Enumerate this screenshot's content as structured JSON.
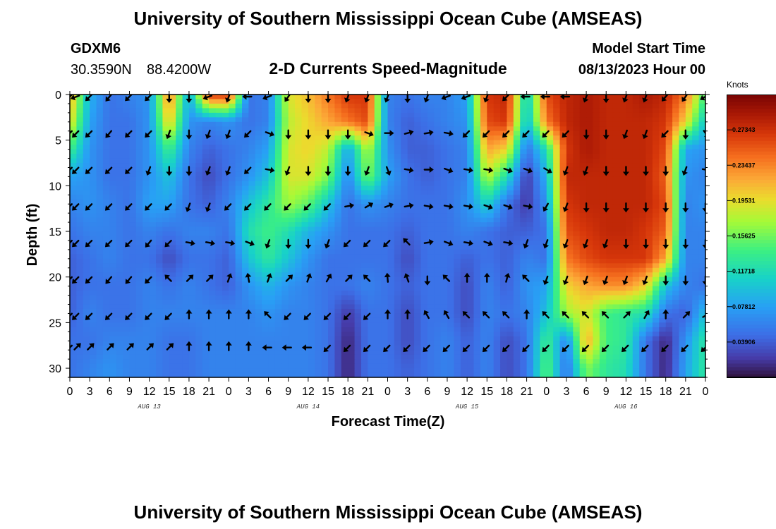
{
  "title": "University of Southern Mississippi Ocean Cube (AMSEAS)",
  "footer_title": "University of Southern Mississippi Ocean Cube (AMSEAS)",
  "station": {
    "name": "GDXM6",
    "lat": "30.3590N",
    "lon": "88.4200W"
  },
  "subtitle": "2-D Currents Speed-Magnitude",
  "model_start": {
    "label": "Model Start Time",
    "value": "08/13/2023 Hour 00"
  },
  "colorbar": {
    "unit": "Knots",
    "tick_labels": [
      "0.03906",
      "0.07812",
      "0.11718",
      "0.15625",
      "0.19531",
      "0.23437",
      "0.27343"
    ],
    "tick_values": [
      0.03906,
      0.07812,
      0.11718,
      0.15625,
      0.19531,
      0.23437,
      0.27343
    ],
    "range": [
      0.0,
      0.3125
    ]
  },
  "chart_data": {
    "type": "heatmap",
    "title": "2-D Currents Speed-Magnitude",
    "xlabel": "Forecast Time(Z)",
    "ylabel": "Depth (ft)",
    "x_tick_labels": [
      "0",
      "3",
      "6",
      "9",
      "12",
      "15",
      "18",
      "21",
      "0",
      "3",
      "6",
      "9",
      "12",
      "15",
      "18",
      "21",
      "0",
      "3",
      "6",
      "9",
      "12",
      "15",
      "18",
      "21",
      "0",
      "3",
      "6",
      "9",
      "12",
      "15",
      "18",
      "21",
      "0"
    ],
    "day_labels": [
      "AUG 13",
      "AUG 14",
      "AUG 15",
      "AUG 16"
    ],
    "y_tick_labels": [
      "0",
      "5",
      "10",
      "15",
      "20",
      "25",
      "30"
    ],
    "ylim": [
      0,
      31
    ],
    "xlim_hours": [
      0,
      96
    ],
    "depths_ft": [
      0,
      3,
      6,
      9,
      12,
      15,
      18,
      21,
      24,
      27,
      30
    ],
    "times_h": [
      0,
      3,
      6,
      9,
      12,
      15,
      18,
      21,
      24,
      27,
      30,
      33,
      36,
      39,
      42,
      45,
      48,
      51,
      54,
      57,
      60,
      63,
      66,
      69,
      72,
      75,
      78,
      81,
      84,
      87,
      90,
      93,
      96
    ],
    "speed_knots": [
      [
        0.22,
        0.09,
        0.05,
        0.06,
        0.07,
        0.24,
        0.08,
        0.27,
        0.27,
        0.05,
        0.06,
        0.19,
        0.21,
        0.24,
        0.27,
        0.27,
        0.06,
        0.05,
        0.06,
        0.06,
        0.08,
        0.27,
        0.28,
        0.1,
        0.26,
        0.28,
        0.29,
        0.28,
        0.28,
        0.29,
        0.28,
        0.24,
        0.14
      ],
      [
        0.2,
        0.08,
        0.05,
        0.05,
        0.07,
        0.21,
        0.07,
        0.06,
        0.07,
        0.05,
        0.06,
        0.18,
        0.2,
        0.22,
        0.24,
        0.26,
        0.06,
        0.04,
        0.05,
        0.06,
        0.07,
        0.26,
        0.27,
        0.09,
        0.24,
        0.28,
        0.29,
        0.28,
        0.28,
        0.28,
        0.27,
        0.2,
        0.1
      ],
      [
        0.14,
        0.07,
        0.05,
        0.05,
        0.07,
        0.14,
        0.06,
        0.04,
        0.05,
        0.06,
        0.08,
        0.19,
        0.2,
        0.18,
        0.08,
        0.18,
        0.07,
        0.04,
        0.04,
        0.05,
        0.06,
        0.22,
        0.2,
        0.05,
        0.12,
        0.27,
        0.29,
        0.28,
        0.28,
        0.28,
        0.26,
        0.08,
        0.07
      ],
      [
        0.08,
        0.07,
        0.05,
        0.05,
        0.07,
        0.1,
        0.05,
        0.03,
        0.05,
        0.07,
        0.1,
        0.19,
        0.19,
        0.16,
        0.06,
        0.16,
        0.08,
        0.05,
        0.04,
        0.05,
        0.06,
        0.18,
        0.12,
        0.02,
        0.09,
        0.28,
        0.28,
        0.28,
        0.28,
        0.28,
        0.25,
        0.07,
        0.06
      ],
      [
        0.06,
        0.07,
        0.06,
        0.05,
        0.08,
        0.08,
        0.05,
        0.04,
        0.06,
        0.1,
        0.13,
        0.17,
        0.15,
        0.1,
        0.05,
        0.07,
        0.06,
        0.05,
        0.05,
        0.05,
        0.07,
        0.11,
        0.05,
        0.02,
        0.07,
        0.27,
        0.28,
        0.28,
        0.28,
        0.28,
        0.26,
        0.06,
        0.07
      ],
      [
        0.05,
        0.06,
        0.06,
        0.05,
        0.06,
        0.05,
        0.06,
        0.06,
        0.05,
        0.12,
        0.14,
        0.12,
        0.09,
        0.07,
        0.05,
        0.05,
        0.05,
        0.04,
        0.05,
        0.05,
        0.06,
        0.05,
        0.04,
        0.04,
        0.05,
        0.26,
        0.27,
        0.28,
        0.28,
        0.27,
        0.25,
        0.06,
        0.06
      ],
      [
        0.04,
        0.05,
        0.06,
        0.05,
        0.05,
        0.03,
        0.05,
        0.05,
        0.04,
        0.1,
        0.13,
        0.1,
        0.07,
        0.05,
        0.05,
        0.05,
        0.05,
        0.03,
        0.05,
        0.05,
        0.04,
        0.05,
        0.04,
        0.06,
        0.05,
        0.24,
        0.26,
        0.27,
        0.27,
        0.27,
        0.22,
        0.06,
        0.06
      ],
      [
        0.04,
        0.05,
        0.05,
        0.05,
        0.06,
        0.05,
        0.06,
        0.05,
        0.04,
        0.07,
        0.09,
        0.07,
        0.06,
        0.05,
        0.05,
        0.06,
        0.05,
        0.04,
        0.05,
        0.05,
        0.03,
        0.06,
        0.04,
        0.07,
        0.08,
        0.2,
        0.22,
        0.23,
        0.23,
        0.2,
        0.1,
        0.06,
        0.05
      ],
      [
        0.04,
        0.06,
        0.05,
        0.05,
        0.06,
        0.06,
        0.06,
        0.06,
        0.06,
        0.06,
        0.07,
        0.06,
        0.06,
        0.05,
        0.02,
        0.05,
        0.05,
        0.03,
        0.05,
        0.05,
        0.03,
        0.06,
        0.05,
        0.06,
        0.1,
        0.17,
        0.19,
        0.14,
        0.13,
        0.12,
        0.05,
        0.04,
        0.1
      ],
      [
        0.05,
        0.05,
        0.06,
        0.06,
        0.06,
        0.05,
        0.05,
        0.06,
        0.06,
        0.06,
        0.06,
        0.06,
        0.06,
        0.05,
        0.01,
        0.05,
        0.05,
        0.03,
        0.05,
        0.06,
        0.04,
        0.06,
        0.03,
        0.05,
        0.14,
        0.06,
        0.22,
        0.14,
        0.13,
        0.05,
        0.01,
        0.07,
        0.13
      ],
      [
        0.05,
        0.06,
        0.07,
        0.06,
        0.06,
        0.05,
        0.05,
        0.06,
        0.06,
        0.06,
        0.06,
        0.06,
        0.06,
        0.05,
        0.01,
        0.05,
        0.05,
        0.04,
        0.05,
        0.06,
        0.04,
        0.06,
        0.03,
        0.05,
        0.15,
        0.05,
        0.16,
        0.13,
        0.12,
        0.05,
        0.01,
        0.08,
        0.13
      ]
    ],
    "arrow_depths_ft": [
      0,
      4,
      8,
      12,
      16,
      20,
      24,
      27.5
    ],
    "arrow_times_h": [
      0,
      1,
      3,
      6,
      9,
      12,
      15,
      18,
      21,
      24,
      27,
      30,
      33,
      36,
      39,
      42,
      45,
      48,
      51,
      54,
      57,
      60,
      63,
      66,
      69,
      72,
      75,
      78,
      81,
      84,
      87,
      90,
      93,
      96
    ],
    "arrow_angle_deg": [
      [
        225,
        250,
        225,
        220,
        225,
        225,
        180,
        180,
        250,
        200,
        270,
        250,
        215,
        180,
        180,
        200,
        200,
        200,
        180,
        200,
        250,
        250,
        200,
        225,
        270,
        270,
        270,
        200,
        180,
        200,
        200,
        220,
        215,
        240
      ],
      [
        225,
        225,
        225,
        220,
        225,
        225,
        200,
        180,
        200,
        200,
        225,
        110,
        180,
        180,
        180,
        180,
        110,
        90,
        75,
        80,
        100,
        225,
        225,
        225,
        225,
        225,
        225,
        180,
        180,
        200,
        200,
        225,
        180,
        145
      ],
      [
        225,
        225,
        225,
        225,
        225,
        200,
        180,
        180,
        200,
        200,
        225,
        100,
        200,
        180,
        180,
        180,
        200,
        160,
        100,
        90,
        110,
        100,
        100,
        110,
        110,
        120,
        200,
        200,
        180,
        180,
        180,
        180,
        200,
        100
      ],
      [
        225,
        225,
        225,
        225,
        225,
        225,
        225,
        200,
        200,
        225,
        225,
        225,
        225,
        225,
        225,
        80,
        60,
        70,
        80,
        100,
        100,
        100,
        110,
        110,
        100,
        210,
        200,
        180,
        180,
        180,
        180,
        180,
        180,
        180
      ],
      [
        225,
        225,
        225,
        225,
        225,
        220,
        225,
        100,
        100,
        100,
        110,
        200,
        180,
        180,
        200,
        225,
        225,
        225,
        315,
        80,
        110,
        100,
        110,
        100,
        200,
        200,
        200,
        200,
        200,
        180,
        180,
        180,
        180,
        180
      ],
      [
        225,
        225,
        225,
        220,
        220,
        225,
        315,
        45,
        45,
        20,
        350,
        20,
        45,
        20,
        30,
        45,
        315,
        355,
        340,
        180,
        315,
        0,
        0,
        15,
        315,
        200,
        200,
        200,
        200,
        200,
        200,
        180,
        180,
        180
      ],
      [
        225,
        225,
        225,
        225,
        225,
        225,
        225,
        0,
        0,
        0,
        0,
        315,
        225,
        225,
        225,
        225,
        225,
        0,
        0,
        330,
        330,
        315,
        315,
        315,
        0,
        315,
        315,
        315,
        315,
        45,
        30,
        0,
        45,
        60
      ],
      [
        225,
        45,
        45,
        45,
        45,
        45,
        45,
        0,
        0,
        0,
        0,
        270,
        270,
        270,
        225,
        225,
        225,
        225,
        225,
        225,
        225,
        225,
        225,
        225,
        225,
        225,
        225,
        225,
        225,
        225,
        225,
        225,
        225,
        225
      ]
    ]
  }
}
